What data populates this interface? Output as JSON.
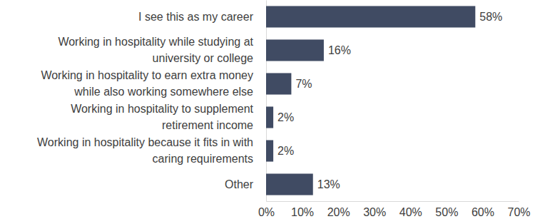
{
  "chart_data": {
    "type": "bar",
    "orientation": "horizontal",
    "categories": [
      "I see this as my career",
      "Working in hospitality while studying at\nuniversity or college",
      "Working in hospitality to earn extra money\nwhile also working somewhere else",
      "Working in hospitality to supplement\nretirement income",
      "Working in hospitality because it fits in with\ncaring requirements",
      "Other"
    ],
    "values": [
      58,
      16,
      7,
      2,
      2,
      13
    ],
    "value_labels": [
      "58%",
      "16%",
      "7%",
      "2%",
      "2%",
      "13%"
    ],
    "data_labels": true,
    "color": "#404b63",
    "xlim": [
      0,
      70
    ],
    "xticks": [
      {
        "value": 0,
        "label": "0%"
      },
      {
        "value": 10,
        "label": "10%"
      },
      {
        "value": 20,
        "label": "20%"
      },
      {
        "value": 30,
        "label": "30%"
      },
      {
        "value": 40,
        "label": "40%"
      },
      {
        "value": 50,
        "label": "50%"
      },
      {
        "value": 60,
        "label": "60%"
      },
      {
        "value": 70,
        "label": "70%"
      }
    ],
    "grid": false
  }
}
